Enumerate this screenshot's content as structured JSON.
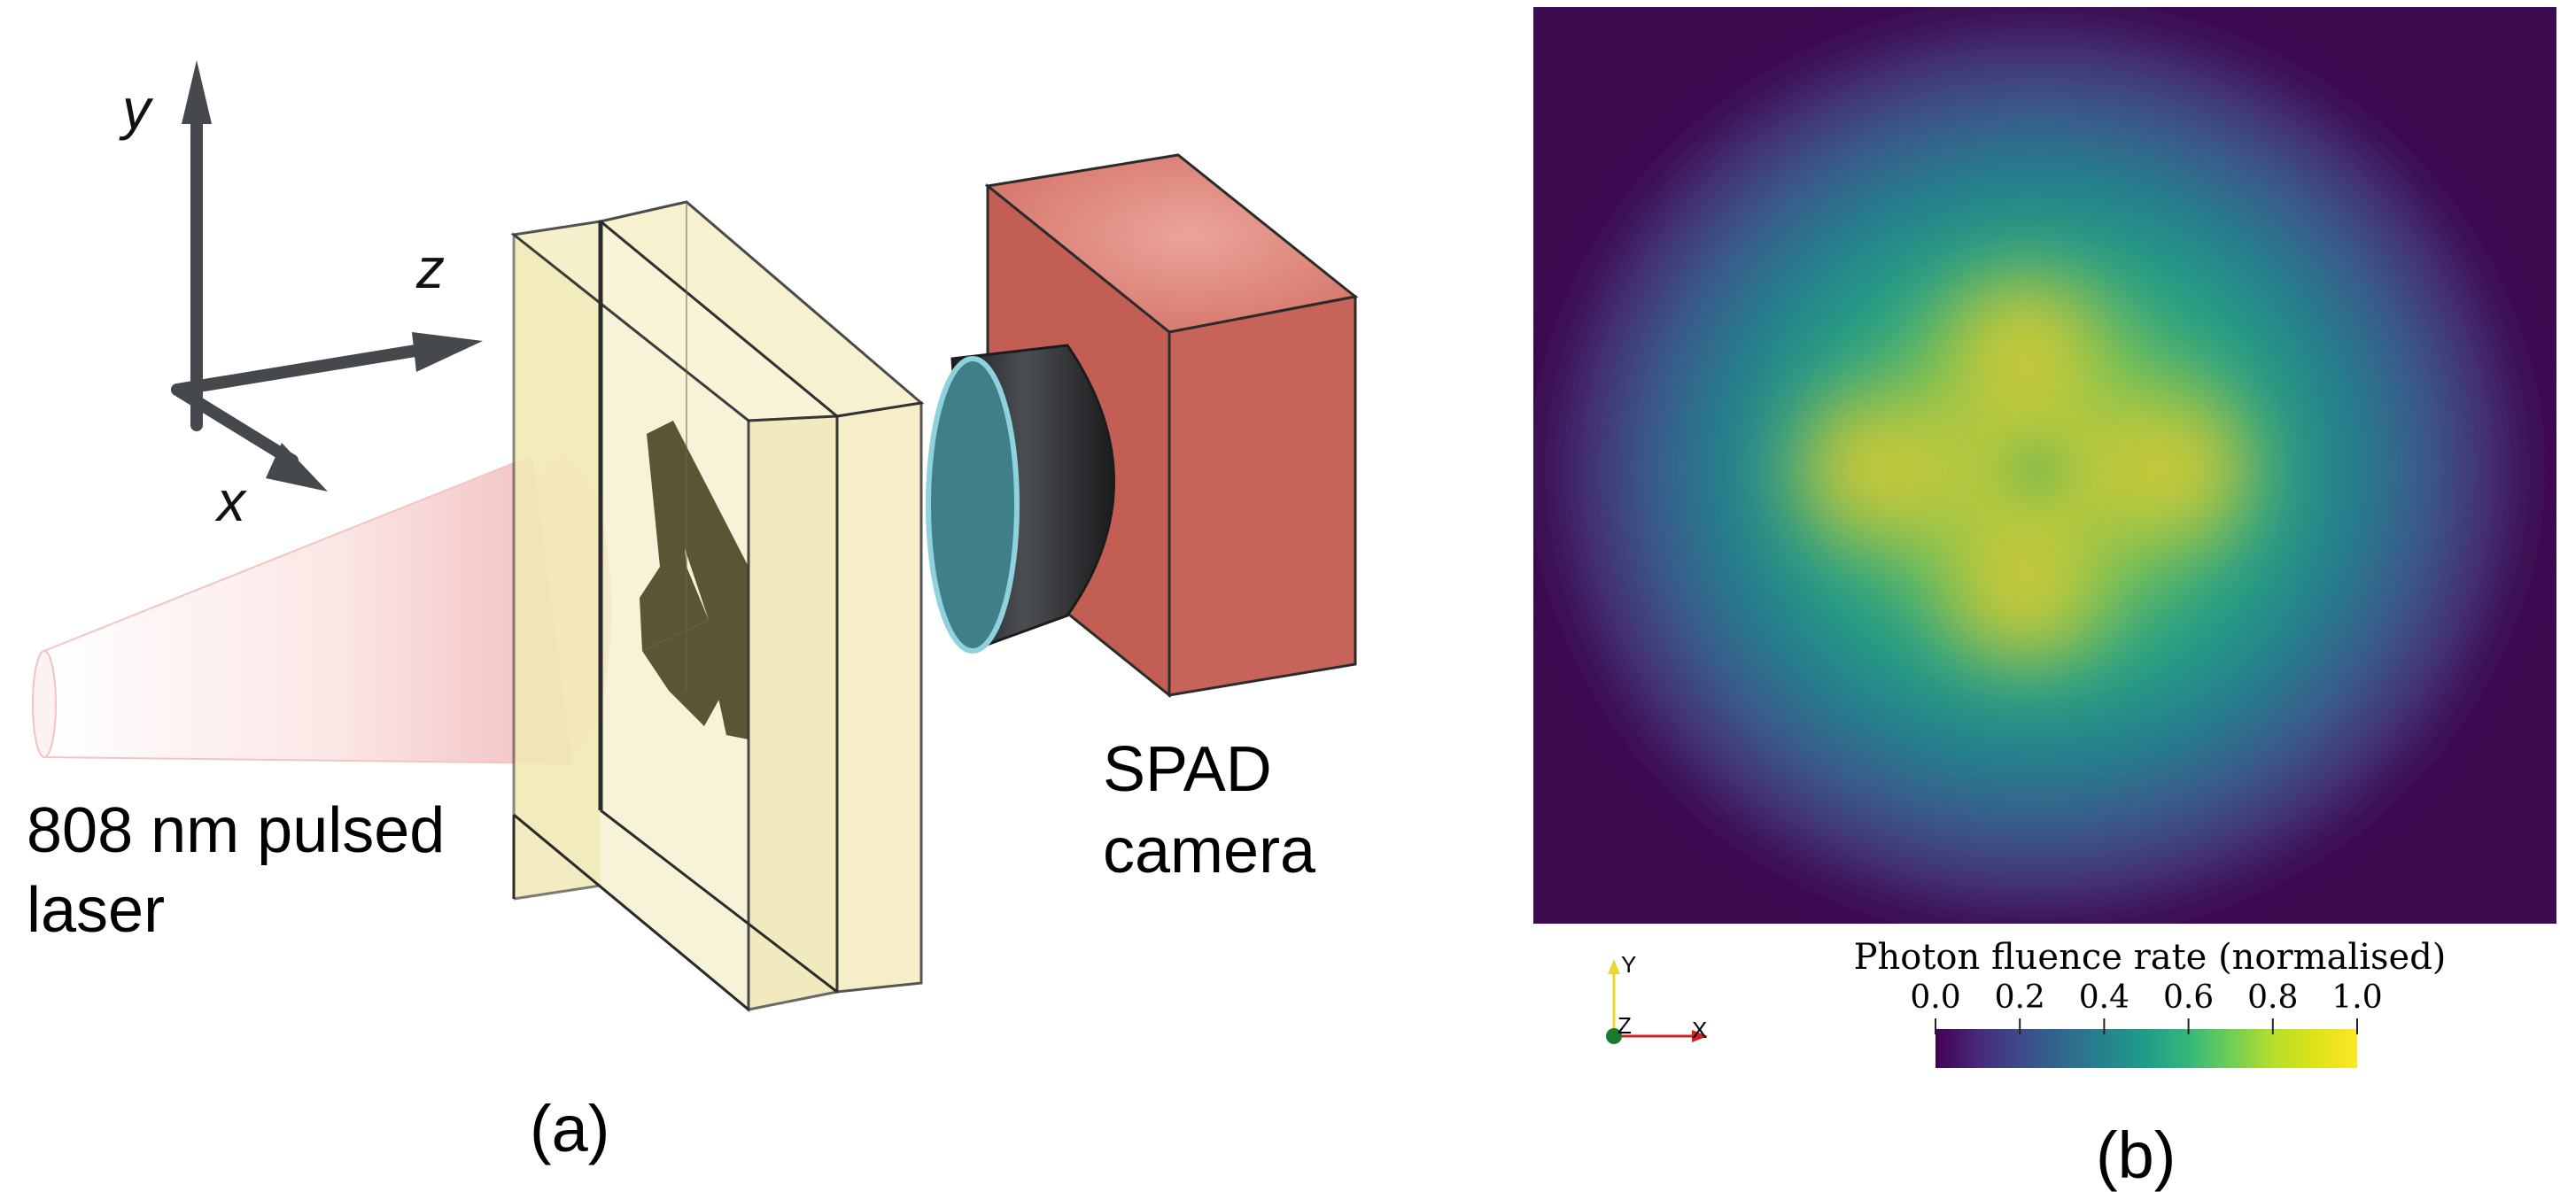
{
  "panel_a": {
    "axes": {
      "y": "y",
      "z": "z",
      "x": "x"
    },
    "laser_label_line1": "808 nm pulsed",
    "laser_label_line2": "laser",
    "camera_label_line1": "SPAD",
    "camera_label_line2": "camera",
    "caption": "(a)",
    "colors": {
      "slab_fill": "#f4eec0",
      "target": "#5c5533",
      "camera_body": "#c9665c",
      "lens_barrel": "#2a2c2e",
      "lens_glass": "#3f7f8a",
      "laser_beam": "#f3c7c6",
      "axis": "#45484c"
    }
  },
  "panel_b": {
    "colorbar_title": "Photon fluence rate (normalised)",
    "colorbar_ticks": [
      "0.0",
      "0.2",
      "0.4",
      "0.6",
      "0.8",
      "1.0"
    ],
    "colormap": "viridis",
    "orientation_axes": {
      "y": "Y",
      "z": "Z",
      "x": "X"
    },
    "caption": "(b)"
  }
}
